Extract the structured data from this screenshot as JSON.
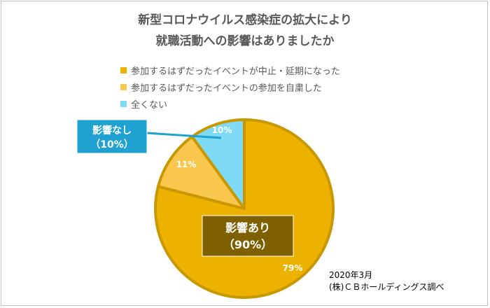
{
  "title": {
    "line1": "新型コロナウイルス感染症の拡大により",
    "line2": "就職活動への影響はありましたか"
  },
  "chart_data": {
    "type": "pie",
    "title": "新型コロナウイルス感染症の拡大により就職活動への影響はありましたか",
    "slices": [
      {
        "label": "参加するはずだったイベントが中止・延期になった",
        "value": 79,
        "display": "79%",
        "color": "#EDB200"
      },
      {
        "label": "参加するはずだったイベントの参加を自粛した",
        "value": 11,
        "display": "11%",
        "color": "#F9C74E"
      },
      {
        "label": "全くない",
        "value": 10,
        "display": "10%",
        "color": "#7FDBF5"
      }
    ],
    "legend_position": "top-left",
    "group_labels": [
      {
        "line1": "影響あり",
        "line2": "（90%）",
        "color": "#7F6000"
      },
      {
        "line1": "影響なし",
        "line2": "（10%）",
        "color": "#1FA2D2"
      }
    ]
  },
  "footnote": {
    "date": "2020年3月",
    "source": "(株)ＣＢホールディングス調べ"
  }
}
